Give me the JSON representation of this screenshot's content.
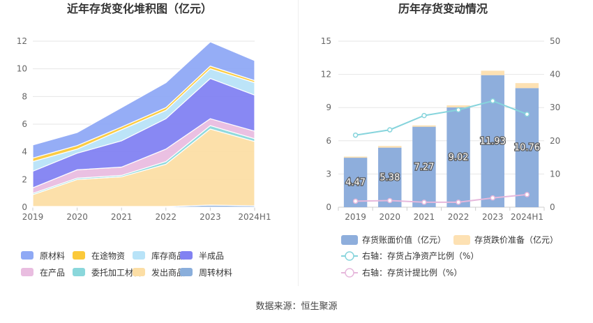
{
  "footer": {
    "source": "数据来源：恒生聚源"
  },
  "colors": {
    "raw": "#8fa9f5",
    "wip_transit": "#fbc93a",
    "goods_stock": "#b8e3f8",
    "semi": "#8282f2",
    "in_product": "#e9bde0",
    "consign": "#8ad7db",
    "shipped": "#fcdea5",
    "turnover": "#8aaedb",
    "bar_book": "#8eaedc",
    "bar_reserve": "#fde1b3",
    "line_ratio": "#86d4dc",
    "line_provision": "#e6b8dc"
  },
  "chart_data": [
    {
      "type": "area",
      "stacked": true,
      "title": "近年存货变化堆积图（亿元）",
      "x": [
        "2019",
        "2020",
        "2021",
        "2022",
        "2023",
        "2024H1"
      ],
      "ylim": [
        0,
        12
      ],
      "yticks": [
        "0",
        "2",
        "4",
        "6",
        "8",
        "10",
        "12"
      ],
      "grid": true,
      "legend_position": "bottom",
      "series": [
        {
          "name": "周转材料",
          "color_key": "turnover",
          "values": [
            0.05,
            0.05,
            0.05,
            0.05,
            0.15,
            0.1
          ]
        },
        {
          "name": "发出商品",
          "color_key": "shipped",
          "values": [
            0.85,
            1.95,
            2.15,
            3.05,
            5.5,
            4.65
          ]
        },
        {
          "name": "委托加工材料",
          "color_key": "consign",
          "values": [
            0.1,
            0.1,
            0.1,
            0.2,
            0.25,
            0.2
          ]
        },
        {
          "name": "在产品",
          "color_key": "in_product",
          "values": [
            0.4,
            0.6,
            0.6,
            0.9,
            0.5,
            0.55
          ]
        },
        {
          "name": "半成品",
          "color_key": "semi",
          "values": [
            1.2,
            1.2,
            1.9,
            2.2,
            2.9,
            2.6
          ]
        },
        {
          "name": "库存商品",
          "color_key": "goods_stock",
          "values": [
            0.7,
            0.3,
            0.8,
            0.6,
            0.7,
            0.9
          ]
        },
        {
          "name": "在途物资",
          "color_key": "wip_transit",
          "values": [
            0.25,
            0.25,
            0.2,
            0.2,
            0.2,
            0.15
          ]
        },
        {
          "name": "原材料",
          "color_key": "raw",
          "values": [
            0.95,
            0.95,
            1.4,
            1.8,
            1.75,
            1.45
          ]
        }
      ],
      "legend": [
        {
          "name": "原材料",
          "color_key": "raw"
        },
        {
          "name": "在途物资",
          "color_key": "wip_transit"
        },
        {
          "name": "库存商品",
          "color_key": "goods_stock"
        },
        {
          "name": "半成品",
          "color_key": "semi"
        },
        {
          "name": "在产品",
          "color_key": "in_product"
        },
        {
          "name": "委托加工材料",
          "color_key": "consign"
        },
        {
          "name": "发出商品",
          "color_key": "shipped"
        },
        {
          "name": "周转材料",
          "color_key": "turnover"
        }
      ]
    },
    {
      "type": "bar",
      "stacked": true,
      "title": "历年存货变动情况",
      "categories": [
        "2019",
        "2020",
        "2021",
        "2022",
        "2023",
        "2024H1"
      ],
      "ylim": [
        0,
        15
      ],
      "yticks": [
        "0",
        "3",
        "6",
        "9",
        "12",
        "15"
      ],
      "y2lim": [
        0,
        50
      ],
      "y2ticks": [
        "0",
        "10",
        "20",
        "30",
        "40",
        "50"
      ],
      "grid": true,
      "legend_position": "bottom",
      "series": [
        {
          "name": "存货账面价值（亿元）",
          "color_key": "bar_book",
          "values": [
            4.47,
            5.38,
            7.27,
            9.02,
            11.93,
            10.76
          ],
          "labels": [
            "4.47",
            "5.38",
            "7.27",
            "9.02",
            "11.93",
            "10.76"
          ]
        },
        {
          "name": "存货跌价准备（亿元）",
          "color_key": "bar_reserve",
          "values": [
            0.1,
            0.15,
            0.12,
            0.18,
            0.4,
            0.45
          ]
        }
      ],
      "lines": [
        {
          "name": "右轴：存货占净资产比例（%）",
          "color_key": "line_ratio",
          "axis": "right",
          "values": [
            21.7,
            23.3,
            27.6,
            29.3,
            32.0,
            28.0
          ]
        },
        {
          "name": "右轴：存货计提比例（%）",
          "color_key": "line_provision",
          "axis": "right",
          "values": [
            1.8,
            2.0,
            1.5,
            1.5,
            2.8,
            3.8
          ]
        }
      ]
    }
  ]
}
